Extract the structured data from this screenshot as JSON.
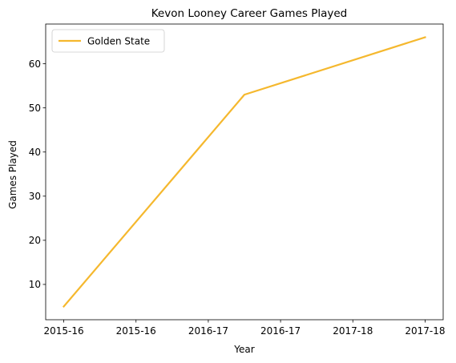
{
  "chart_data": {
    "type": "line",
    "title": "Kevon Looney Career Games Played",
    "xlabel": "Year",
    "ylabel": "Games Played",
    "x_tick_labels": [
      "2015-16",
      "2015-16",
      "2016-17",
      "2016-17",
      "2017-18",
      "2017-18"
    ],
    "x_tick_values": [
      0,
      0.4,
      0.8,
      1.2,
      1.6,
      2.0
    ],
    "xlim": [
      -0.1,
      2.1
    ],
    "ylim": [
      2.0,
      69.0
    ],
    "y_ticks": [
      10,
      20,
      30,
      40,
      50,
      60
    ],
    "grid": false,
    "legend_position": "upper-left",
    "series": [
      {
        "name": "Golden State",
        "color": "#f5b82e",
        "x": [
          0,
          1,
          2
        ],
        "x_labels": [
          "2015-16",
          "2016-17",
          "2017-18"
        ],
        "values": [
          5,
          53,
          66
        ]
      }
    ]
  }
}
